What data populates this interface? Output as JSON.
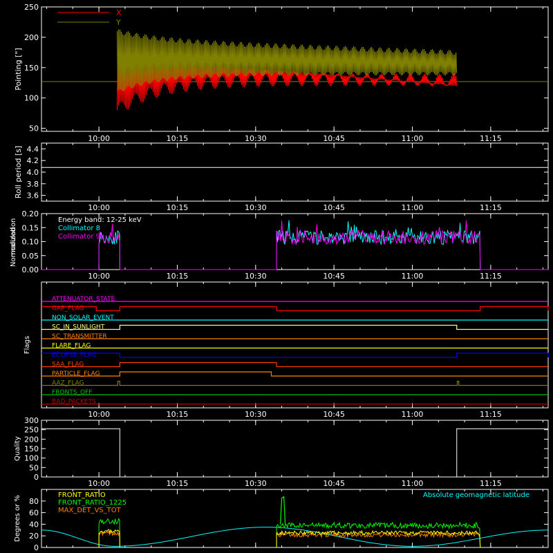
{
  "time_ticks": [
    "10:00",
    "10:15",
    "10:30",
    "10:45",
    "11:00",
    "11:15"
  ],
  "colors": {
    "fg": "#ffffff",
    "red": "#ff0000",
    "olive": "#808000",
    "cyan": "#00ffff",
    "magenta": "#ff00ff",
    "orange": "#ff8000",
    "yellow": "#ffff00",
    "blue": "#0000ff",
    "green": "#00ff00",
    "orange_red": "#ff4000",
    "lime": "#00c000",
    "dark_red": "#c00000"
  },
  "chart_data": [
    {
      "type": "line",
      "ylabel": "Pointing [\"]",
      "ylim": [
        45,
        250
      ],
      "yticks": [
        50,
        100,
        150,
        200,
        250
      ],
      "legend": [
        {
          "name": "X",
          "color": "#ff0000"
        },
        {
          "name": "Y",
          "color": "#808000"
        }
      ],
      "x_range": [
        "09:49",
        "11:26"
      ],
      "series": [
        {
          "name": "X",
          "start": "10:03.5",
          "end": "11:08.5",
          "envelope_low_start": 80,
          "envelope_low_settle": 130,
          "envelope_high": 170,
          "envelope_low_end": 120
        },
        {
          "name": "Y",
          "start": "10:03.5",
          "end": "11:08.5",
          "envelope_high_start": 210,
          "envelope_high_settle": 195,
          "envelope_low_start": 110,
          "envelope_low_settle": 140,
          "envelope_high_end": 175
        }
      ],
      "reference_line": 127
    },
    {
      "type": "line",
      "ylabel": "Roll period [s]",
      "ylim": [
        3.5,
        4.5
      ],
      "yticks": [
        "3.6",
        "3.8",
        "4.0",
        "4.2",
        "4.4"
      ],
      "series": [
        {
          "name": "",
          "constant": 4.08
        }
      ]
    },
    {
      "type": "line",
      "ylabel": "Normalized modulation",
      "ylim": [
        0,
        0.2
      ],
      "yticks": [
        "0.00",
        "0.05",
        "0.10",
        "0.15",
        "0.20"
      ],
      "legend": [
        {
          "name": "Energy band: 12-25 keV",
          "color": "#ffffff"
        },
        {
          "name": "Collimator 8",
          "color": "#00ffff"
        },
        {
          "name": "Collimator 9",
          "color": "#ff00ff"
        }
      ],
      "active_intervals": [
        [
          "10:00",
          "10:04"
        ],
        [
          "10:34",
          "11:13"
        ]
      ],
      "mean_level": 0.115
    },
    {
      "type": "line",
      "ylabel": "Flags",
      "flags": [
        {
          "name": "ATTENUATOR_STATE",
          "color": "#ff00ff",
          "high": []
        },
        {
          "name": "GAP_FLAG",
          "color": "#ff0000",
          "high": [
            [
              "09:49",
              "09:59.5"
            ],
            [
              "10:04",
              "10:34"
            ],
            [
              "11:13",
              "11:26"
            ]
          ]
        },
        {
          "name": "NON_SOLAR_EVENT",
          "color": "#00ffff",
          "high": []
        },
        {
          "name": "SC_IN_SUNLIGHT",
          "color": "#ffff80",
          "high": [
            [
              "10:04",
              "11:08.5"
            ]
          ]
        },
        {
          "name": "SC_TRANSMITTER",
          "color": "#ff8000",
          "high": []
        },
        {
          "name": "FLARE_FLAG",
          "color": "#ffff00",
          "high": []
        },
        {
          "name": "ECLIPSE_FLAG",
          "color": "#0000ff",
          "high": [
            [
              "09:49",
              "10:04"
            ],
            [
              "11:08.5",
              "11:26"
            ]
          ]
        },
        {
          "name": "SAA_FLAG",
          "color": "#ff4000",
          "high": [
            [
              "10:04",
              "10:34"
            ]
          ]
        },
        {
          "name": "PARTICLE_FLAG",
          "color": "#ff8000",
          "high": [
            [
              "10:04",
              "10:33"
            ]
          ]
        },
        {
          "name": "AAZ_FLAG",
          "color": "#808000",
          "high": [
            [
              "10:03.6",
              "10:04"
            ],
            [
              "11:08.6",
              "11:08.9"
            ]
          ]
        },
        {
          "name": "FRONTS_OFF",
          "color": "#00c000",
          "high": []
        },
        {
          "name": "BAD_PACKETS",
          "color": "#c00000",
          "high": []
        }
      ]
    },
    {
      "type": "line",
      "ylabel": "Quality",
      "ylim": [
        0,
        300
      ],
      "yticks": [
        0,
        50,
        100,
        150,
        200,
        250,
        300
      ],
      "series": [
        {
          "name": "",
          "segments": [
            [
              "09:49",
              "10:04",
              255
            ],
            [
              "10:04",
              "11:08.5",
              0
            ],
            [
              "11:08.5",
              "11:26",
              255
            ]
          ]
        }
      ]
    },
    {
      "type": "line",
      "ylabel": "Degrees or %",
      "ylim": [
        0,
        100
      ],
      "yticks": [
        0,
        20,
        40,
        60,
        80
      ],
      "legend": [
        {
          "name": "FRONT_RATIO",
          "color": "#ffff00"
        },
        {
          "name": "FRONT_RATIO_1225",
          "color": "#00ff00"
        },
        {
          "name": "MAX_DET_VS_TOT",
          "color": "#ff8000"
        },
        {
          "name": "Absolute geomagnetic latitude",
          "color": "#00ffff"
        }
      ],
      "geomagnetic_latitude": {
        "x": [
          "09:49",
          "10:03",
          "10:32",
          "11:00",
          "11:26"
        ],
        "y": [
          30,
          2,
          35,
          2,
          30
        ]
      },
      "front_ratio_1225": {
        "intervals": [
          [
            "10:00",
            "10:04",
            45
          ],
          [
            "10:34",
            "11:13",
            38
          ]
        ],
        "spike": [
          "10:35",
          85
        ]
      },
      "front_ratio": {
        "intervals": [
          [
            "10:00",
            "10:04",
            28
          ],
          [
            "10:34",
            "11:13",
            25
          ]
        ]
      },
      "max_det_vs_tot": {
        "intervals": [
          [
            "10:00",
            "10:04",
            25
          ],
          [
            "10:34",
            "11:13",
            22
          ]
        ]
      }
    }
  ]
}
